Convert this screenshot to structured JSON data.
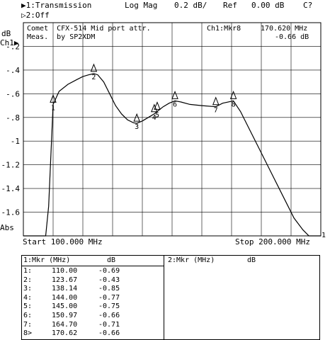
{
  "header": {
    "channel1_marker": "▶1:",
    "channel1": "Transmission",
    "format": "Log Mag",
    "scale": "0.2 dB/",
    "ref_label": "Ref",
    "ref_value": "0.00 dB",
    "cal_status": "C?",
    "channel2_marker": "▷2:",
    "channel2": "Off"
  },
  "plot": {
    "db_label": "dB",
    "ch_label": "Ch1",
    "ref_marker": "▶",
    "abs_label": "Abs",
    "title_line1": "Comet  CFX-514 Mid port attr.",
    "title_line2": "Meas.  by SP2XDM",
    "active_marker": "Ch1:Mkr8",
    "active_freq": "170.620 MHz",
    "active_value": "-0.66 dB",
    "start": "Start 100.000 MHz",
    "stop": "Stop 200.000 MHz",
    "right_ref": "1"
  },
  "table": {
    "left_title": "1:Mkr (MHz)",
    "left_unit": "dB",
    "right_title": "2:Mkr (MHz)",
    "right_unit": "dB",
    "rows": [
      {
        "id": "1:",
        "freq": "110.00",
        "db": "-0.69"
      },
      {
        "id": "2:",
        "freq": "123.67",
        "db": "-0.43"
      },
      {
        "id": "3:",
        "freq": "138.14",
        "db": "-0.85"
      },
      {
        "id": "4:",
        "freq": "144.00",
        "db": "-0.77"
      },
      {
        "id": "5:",
        "freq": "145.00",
        "db": "-0.75"
      },
      {
        "id": "6:",
        "freq": "150.97",
        "db": "-0.66"
      },
      {
        "id": "7:",
        "freq": "164.70",
        "db": "-0.71"
      },
      {
        "id": "8>",
        "freq": "170.62",
        "db": "-0.66"
      }
    ]
  },
  "chart_data": {
    "type": "line",
    "xlim": [
      100,
      200
    ],
    "ylim": [
      -1.8,
      0
    ],
    "yticks": [
      "-.2",
      "-.4",
      "-.6",
      "-.8",
      "-1",
      "-1.2",
      "-1.4",
      "-1.6"
    ],
    "ytick_values": [
      -0.2,
      -0.4,
      -0.6,
      -0.8,
      -1.0,
      -1.2,
      -1.4,
      -1.6
    ],
    "grid": true,
    "series": [
      {
        "values_x": [
          100,
          102,
          104,
          106,
          107.5,
          108.5,
          110,
          112,
          115,
          118,
          120,
          122,
          123.67,
          125,
          127,
          129,
          131,
          133,
          135,
          137,
          138.14,
          140,
          142,
          144,
          145,
          147,
          149,
          150.97,
          153,
          156,
          160,
          164.7,
          167,
          170.62,
          173,
          176,
          180,
          184,
          188,
          191,
          194,
          196,
          197,
          198,
          200
        ],
        "values_y": [
          -1.8,
          -1.8,
          -1.8,
          -1.8,
          -1.8,
          -1.55,
          -0.69,
          -0.58,
          -0.52,
          -0.48,
          -0.455,
          -0.44,
          -0.43,
          -0.44,
          -0.5,
          -0.6,
          -0.7,
          -0.77,
          -0.82,
          -0.845,
          -0.85,
          -0.83,
          -0.8,
          -0.77,
          -0.75,
          -0.71,
          -0.68,
          -0.66,
          -0.67,
          -0.69,
          -0.7,
          -0.71,
          -0.68,
          -0.66,
          -0.75,
          -0.9,
          -1.1,
          -1.3,
          -1.5,
          -1.65,
          -1.75,
          -1.8,
          -1.8,
          -1.8,
          -1.8
        ]
      }
    ],
    "markers": [
      {
        "label": "1",
        "x": 110.0,
        "y": -0.69
      },
      {
        "label": "2",
        "x": 123.67,
        "y": -0.43
      },
      {
        "label": "3",
        "x": 138.14,
        "y": -0.85
      },
      {
        "label": "4",
        "x": 144.0,
        "y": -0.77
      },
      {
        "label": "5",
        "x": 145.0,
        "y": -0.75
      },
      {
        "label": "6",
        "x": 150.97,
        "y": -0.66
      },
      {
        "label": "7",
        "x": 164.7,
        "y": -0.71
      },
      {
        "label": "8",
        "x": 170.62,
        "y": -0.66
      }
    ]
  }
}
